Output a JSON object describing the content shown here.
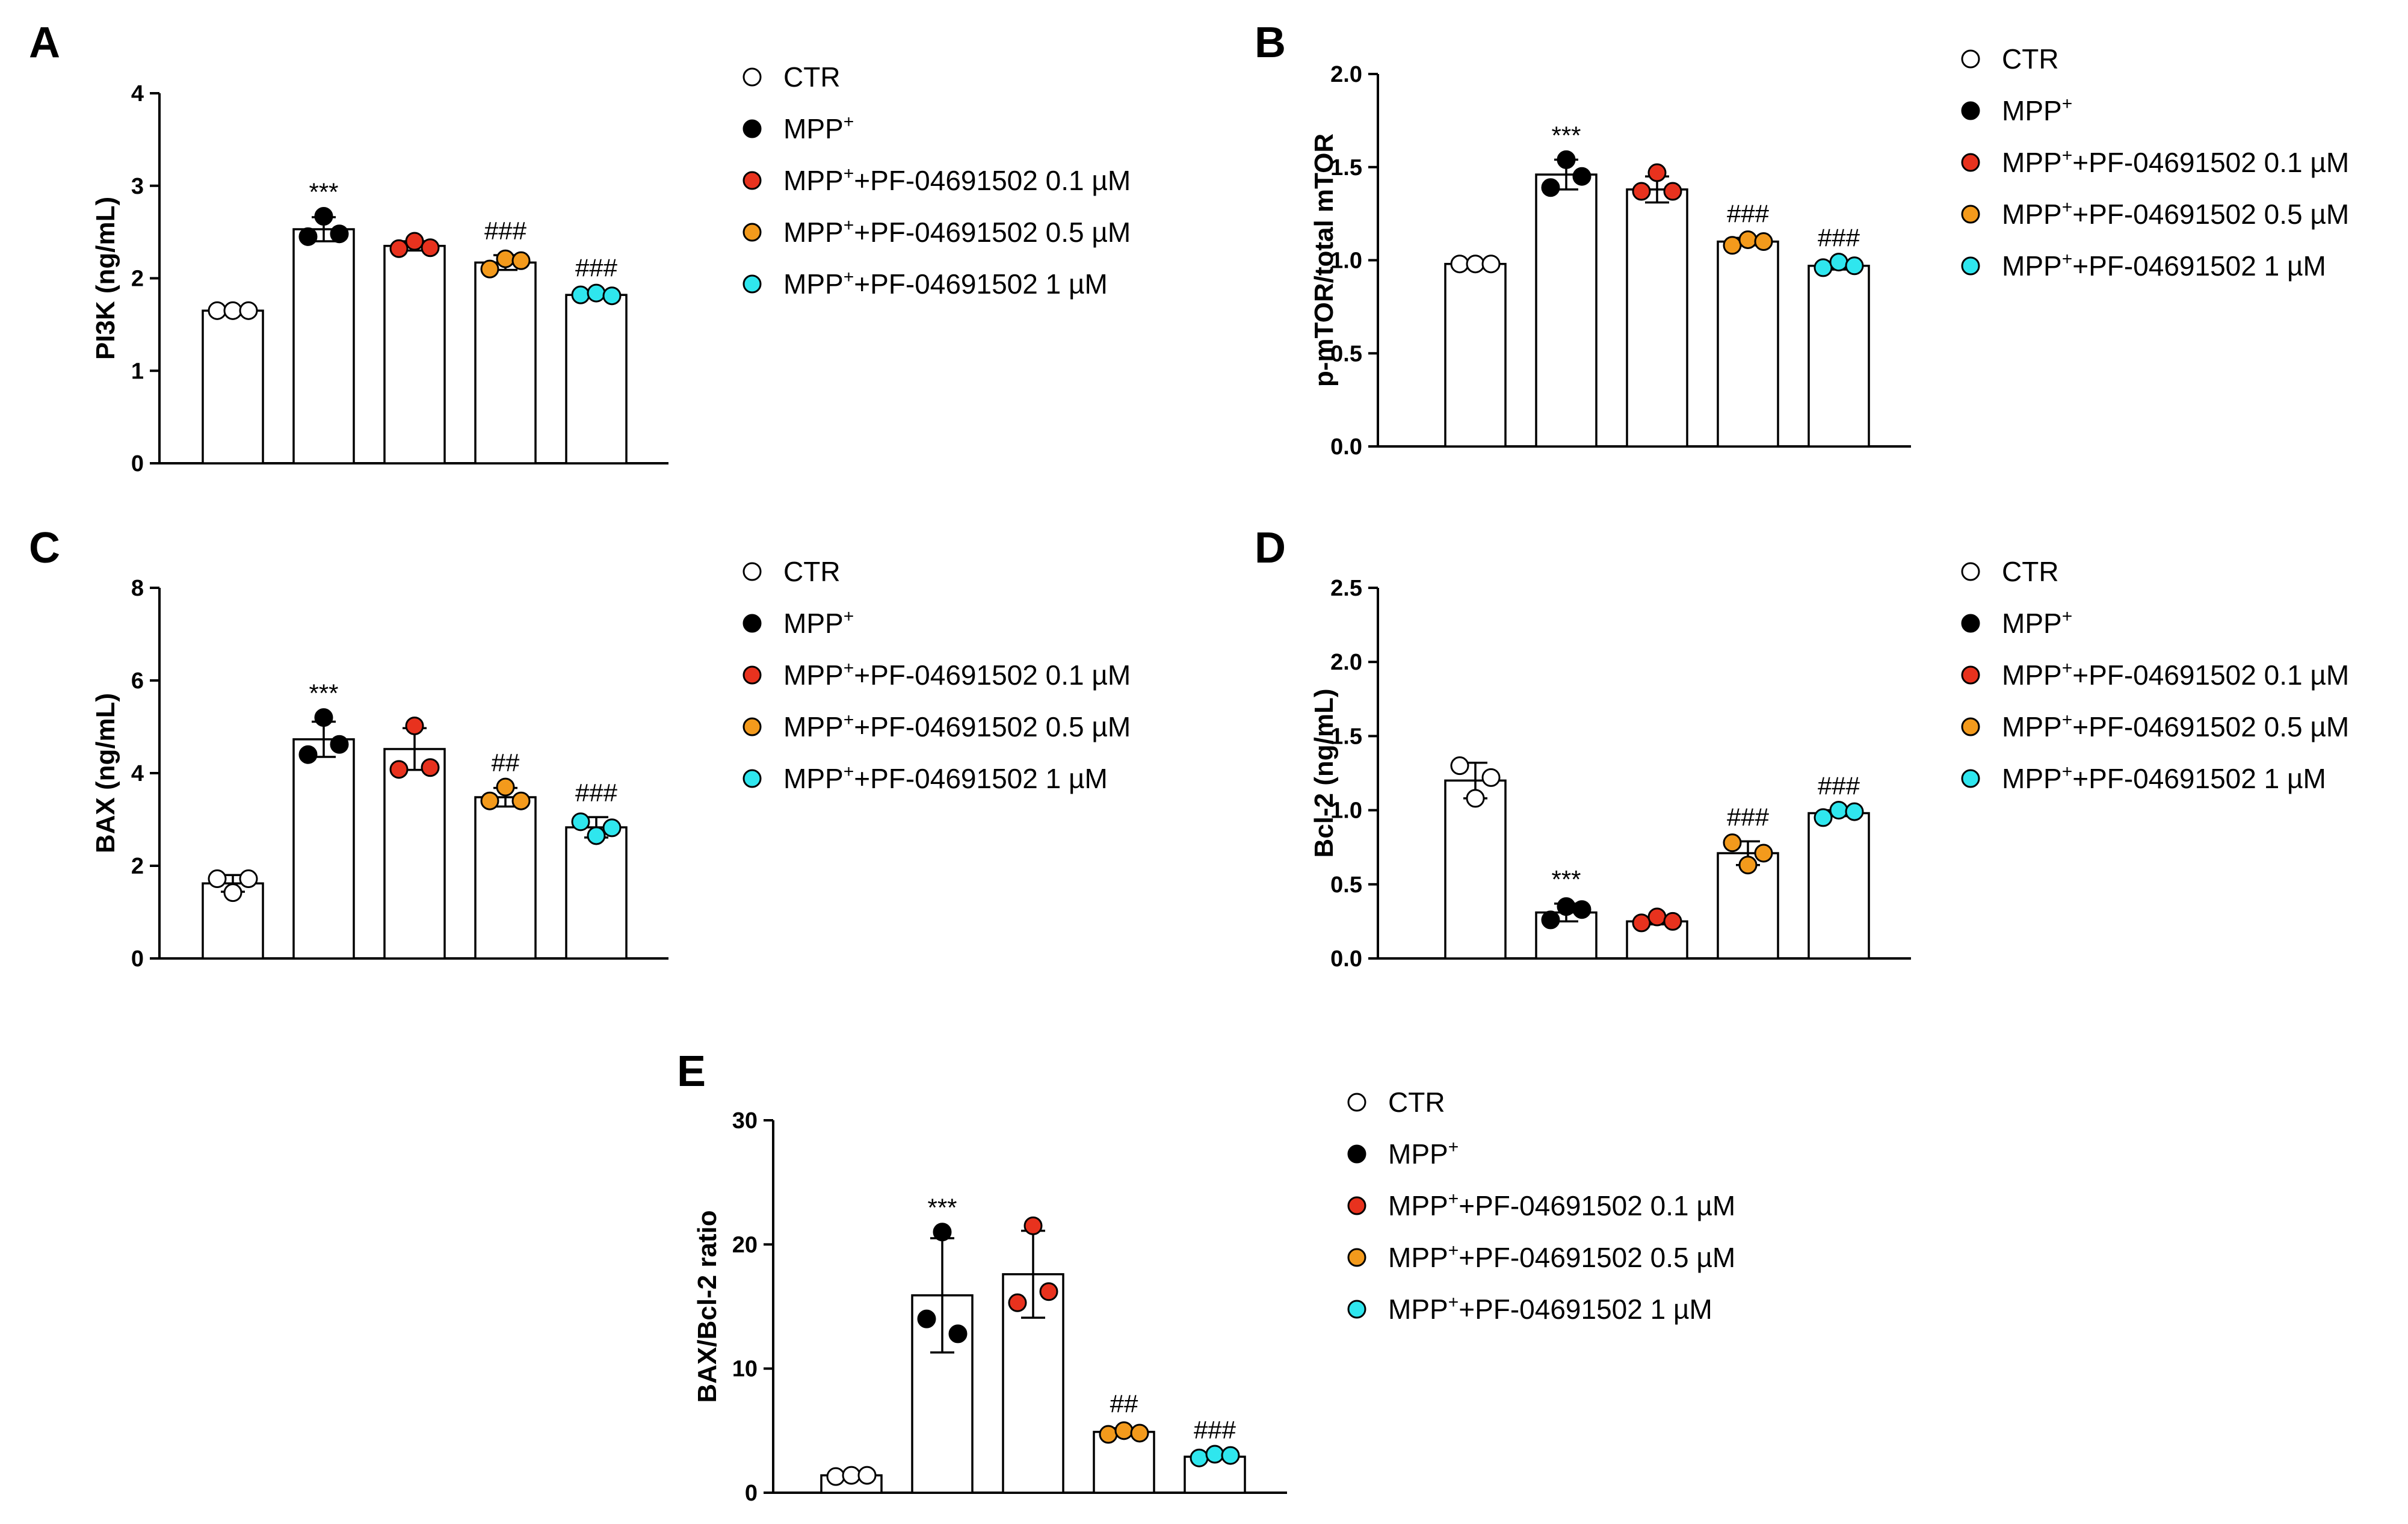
{
  "colors": {
    "CTR": "#ffffff",
    "MPP": "#000000",
    "PF01": "#e8321e",
    "PF05": "#f39a1c",
    "PF1": "#2fe6ee",
    "stroke": "#000000"
  },
  "legend": [
    {
      "main": "CTR",
      "sup": "",
      "rest": "",
      "color_key": "CTR"
    },
    {
      "main": "MPP",
      "sup": "+",
      "rest": "",
      "color_key": "MPP"
    },
    {
      "main": "MPP",
      "sup": "+",
      "rest": "+PF-04691502 0.1 µM",
      "color_key": "PF01"
    },
    {
      "main": "MPP",
      "sup": "+",
      "rest": "+PF-04691502 0.5 µM",
      "color_key": "PF05"
    },
    {
      "main": "MPP",
      "sup": "+",
      "rest": "+PF-04691502 1 µM",
      "color_key": "PF1"
    }
  ],
  "chart_data": [
    {
      "letter": "A",
      "type": "bar",
      "ylabel": "PI3K (ng/mL)",
      "ylim": [
        0,
        4
      ],
      "yticks": [
        "0",
        "1",
        "2",
        "3",
        "4"
      ],
      "categories": [
        "CTR",
        "MPP+",
        "MPP++PF-04691502 0.1 µM",
        "MPP++PF-04691502 0.5 µM",
        "MPP++PF-04691502 1 µM"
      ],
      "values": [
        1.65,
        2.53,
        2.35,
        2.17,
        1.82
      ],
      "errors": [
        0.0,
        0.13,
        0.05,
        0.08,
        0.03
      ],
      "points": [
        [
          1.65,
          1.65,
          1.65
        ],
        [
          2.45,
          2.67,
          2.48
        ],
        [
          2.32,
          2.4,
          2.33
        ],
        [
          2.1,
          2.21,
          2.19
        ],
        [
          1.82,
          1.84,
          1.81
        ]
      ],
      "annotations": [
        "",
        "***",
        "",
        "###",
        "###"
      ]
    },
    {
      "letter": "B",
      "type": "bar",
      "ylabel": "p-mTOR/total mTOR",
      "ylim": [
        0,
        2.0
      ],
      "yticks": [
        "0.0",
        "0.5",
        "1.0",
        "1.5",
        "2.0"
      ],
      "categories": [
        "CTR",
        "MPP+",
        "MPP++PF-04691502 0.1 µM",
        "MPP++PF-04691502 0.5 µM",
        "MPP++PF-04691502 1 µM"
      ],
      "values": [
        0.98,
        1.46,
        1.38,
        1.1,
        0.97
      ],
      "errors": [
        0.01,
        0.08,
        0.07,
        0.02,
        0.02
      ],
      "points": [
        [
          0.98,
          0.98,
          0.98
        ],
        [
          1.39,
          1.54,
          1.45
        ],
        [
          1.37,
          1.47,
          1.37
        ],
        [
          1.08,
          1.11,
          1.1
        ],
        [
          0.96,
          0.99,
          0.97
        ]
      ],
      "annotations": [
        "",
        "***",
        "",
        "###",
        "###"
      ]
    },
    {
      "letter": "C",
      "type": "bar",
      "ylabel": "BAX (ng/mL)",
      "ylim": [
        0,
        8
      ],
      "yticks": [
        "0",
        "2",
        "4",
        "6",
        "8"
      ],
      "categories": [
        "CTR",
        "MPP+",
        "MPP++PF-04691502 0.1 µM",
        "MPP++PF-04691502 0.5 µM",
        "MPP++PF-04691502 1 µM"
      ],
      "values": [
        1.62,
        4.73,
        4.52,
        3.48,
        2.83
      ],
      "errors": [
        0.18,
        0.38,
        0.45,
        0.2,
        0.22
      ],
      "points": [
        [
          1.72,
          1.42,
          1.72
        ],
        [
          4.4,
          5.2,
          4.62
        ],
        [
          4.08,
          5.02,
          4.12
        ],
        [
          3.4,
          3.7,
          3.4
        ],
        [
          2.95,
          2.65,
          2.82
        ]
      ],
      "annotations": [
        "",
        "***",
        "",
        "##",
        "###"
      ]
    },
    {
      "letter": "D",
      "type": "bar",
      "ylabel": "Bcl-2 (ng/mL)",
      "ylim": [
        0,
        2.5
      ],
      "yticks": [
        "0.0",
        "0.5",
        "1.0",
        "1.5",
        "2.0",
        "2.5"
      ],
      "categories": [
        "CTR",
        "MPP+",
        "MPP++PF-04691502 0.1 µM",
        "MPP++PF-04691502 0.5 µM",
        "MPP++PF-04691502 1 µM"
      ],
      "values": [
        1.2,
        0.31,
        0.25,
        0.71,
        0.98
      ],
      "errors": [
        0.12,
        0.06,
        0.02,
        0.08,
        0.02
      ],
      "points": [
        [
          1.3,
          1.08,
          1.22
        ],
        [
          0.26,
          0.35,
          0.33
        ],
        [
          0.24,
          0.28,
          0.25
        ],
        [
          0.78,
          0.63,
          0.71
        ],
        [
          0.95,
          1.0,
          0.99
        ]
      ],
      "annotations": [
        "",
        "***",
        "",
        "###",
        "###"
      ]
    },
    {
      "letter": "E",
      "type": "bar",
      "ylabel": "BAX/Bcl-2 ratio",
      "ylim": [
        0,
        30
      ],
      "yticks": [
        "0",
        "10",
        "20",
        "30"
      ],
      "categories": [
        "CTR",
        "MPP+",
        "MPP++PF-04691502 0.1 µM",
        "MPP++PF-04691502 0.5 µM",
        "MPP++PF-04691502 1 µM"
      ],
      "values": [
        1.4,
        15.9,
        17.6,
        4.9,
        2.9
      ],
      "errors": [
        0.1,
        4.6,
        3.5,
        0.3,
        0.2
      ],
      "points": [
        [
          1.3,
          1.4,
          1.4
        ],
        [
          14.0,
          21.0,
          12.8
        ],
        [
          15.3,
          21.5,
          16.2
        ],
        [
          4.7,
          5.0,
          4.8
        ],
        [
          2.8,
          3.1,
          3.0
        ]
      ],
      "annotations": [
        "",
        "***",
        "",
        "##",
        "###"
      ]
    }
  ]
}
